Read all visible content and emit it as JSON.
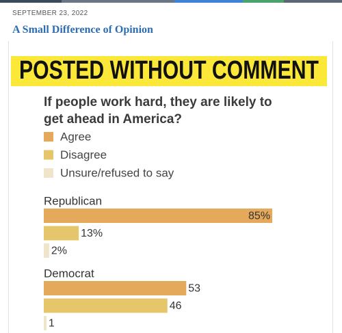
{
  "header": {
    "date": "SEPTEMBER 23, 2022",
    "title": "A Small Difference of Opinion"
  },
  "chart_data": {
    "type": "hbar",
    "title": "POSTED WITHOUT COMMENT",
    "subtitle": "If people work hard, they are likely to get ahead in America?",
    "categories": [
      "Republican",
      "Democrat"
    ],
    "series": [
      {
        "name": "Agree",
        "color": "#e4a95a",
        "values": [
          85,
          53
        ],
        "value_labels": [
          "85%",
          "53"
        ]
      },
      {
        "name": "Disagree",
        "color": "#e6c66a",
        "values": [
          13,
          46
        ],
        "value_labels": [
          "13%",
          "46"
        ]
      },
      {
        "name": "Unsure/refused to say",
        "color": "#efe5cb",
        "values": [
          2,
          1
        ],
        "value_labels": [
          "2%",
          "1"
        ]
      }
    ]
  }
}
